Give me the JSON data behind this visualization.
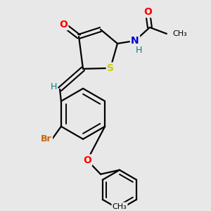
{
  "background_color": "#e8e8e8",
  "figsize": [
    3.0,
    3.0
  ],
  "dpi": 100,
  "bg_color": "#e8e8e8",
  "atom_colors": {
    "O": "#ff0000",
    "N": "#0000cd",
    "S": "#cccc00",
    "Br": "#cc6600",
    "H": "#008080",
    "C": "#000000"
  }
}
